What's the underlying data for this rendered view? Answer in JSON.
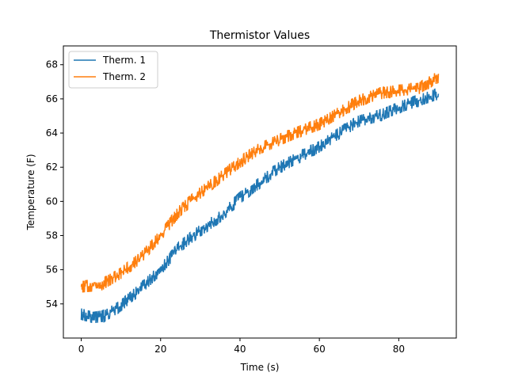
{
  "chart_data": {
    "type": "line",
    "title": "Thermistor Values",
    "xlabel": "Time (s)",
    "ylabel": "Temperature (F)",
    "xlim": [
      -4.5,
      94.5
    ],
    "ylim": [
      52.0,
      69.1
    ],
    "xticks": [
      0,
      20,
      40,
      60,
      80
    ],
    "yticks": [
      54,
      56,
      58,
      60,
      62,
      64,
      66,
      68
    ],
    "legend_position": "top-left",
    "grid": false,
    "noise": 0.17,
    "series": [
      {
        "name": "Therm. 1",
        "color": "#1f77b4",
        "points": [
          [
            0,
            53.4
          ],
          [
            3,
            53.2
          ],
          [
            6,
            53.3
          ],
          [
            10,
            53.9
          ],
          [
            15,
            54.9
          ],
          [
            20,
            56.0
          ],
          [
            25,
            57.4
          ],
          [
            30,
            58.3
          ],
          [
            35,
            59.1
          ],
          [
            40,
            60.2
          ],
          [
            45,
            61.1
          ],
          [
            50,
            62.0
          ],
          [
            55,
            62.6
          ],
          [
            60,
            63.2
          ],
          [
            65,
            64.0
          ],
          [
            70,
            64.7
          ],
          [
            75,
            65.0
          ],
          [
            80,
            65.5
          ],
          [
            85,
            65.9
          ],
          [
            90,
            66.3
          ]
        ]
      },
      {
        "name": "Therm. 2",
        "color": "#ff7f0e",
        "points": [
          [
            0,
            55.0
          ],
          [
            5,
            55.1
          ],
          [
            10,
            55.8
          ],
          [
            15,
            56.7
          ],
          [
            20,
            58.0
          ],
          [
            25,
            59.5
          ],
          [
            30,
            60.5
          ],
          [
            35,
            61.4
          ],
          [
            40,
            62.3
          ],
          [
            45,
            63.1
          ],
          [
            50,
            63.6
          ],
          [
            55,
            64.1
          ],
          [
            60,
            64.5
          ],
          [
            65,
            65.2
          ],
          [
            70,
            65.9
          ],
          [
            75,
            66.3
          ],
          [
            80,
            66.5
          ],
          [
            85,
            66.6
          ],
          [
            90,
            67.3
          ]
        ]
      }
    ]
  }
}
